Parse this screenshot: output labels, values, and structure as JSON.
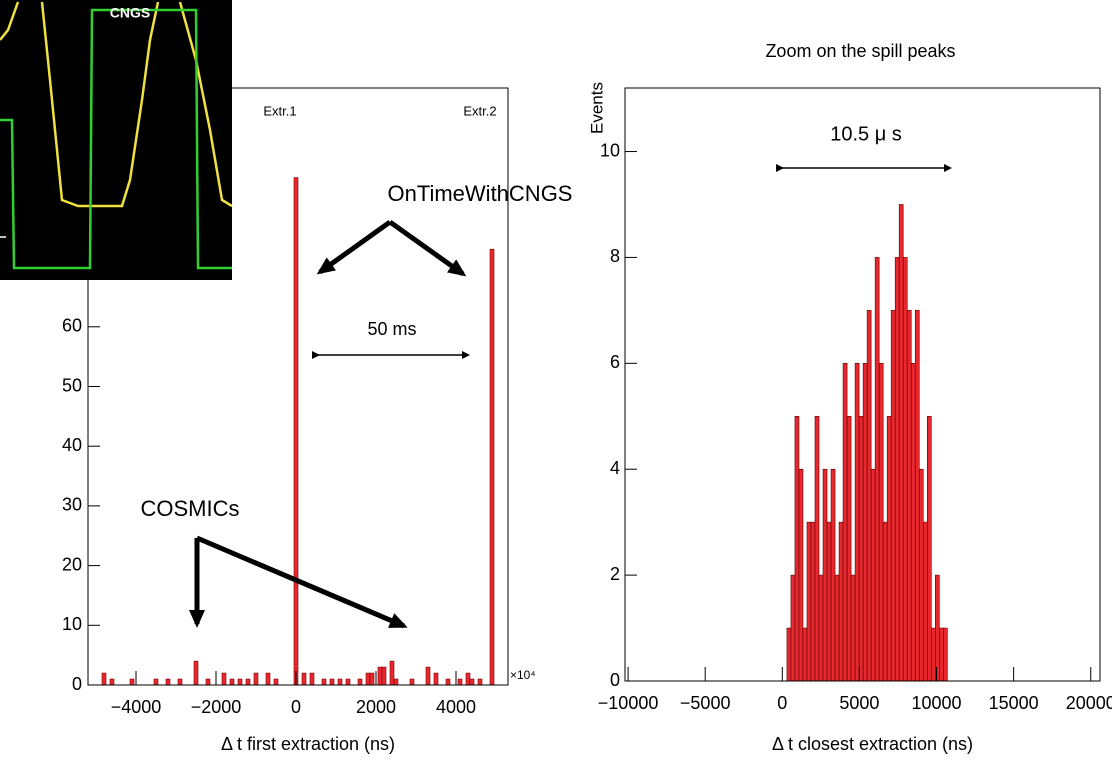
{
  "chart_data": [
    {
      "type": "bar",
      "x": [
        -4800,
        -4600,
        -4100,
        -3500,
        -3200,
        -2900,
        -2500,
        -2200,
        -1800,
        -1600,
        -1400,
        -1200,
        -1000,
        -700,
        -500,
        0,
        200,
        400,
        700,
        900,
        1100,
        1300,
        1600,
        1800,
        1900,
        2100,
        2200,
        2400,
        2500,
        2900,
        3300,
        3500,
        3800,
        4100,
        4300,
        4400,
        4600,
        4900
      ],
      "values": [
        2,
        1,
        1,
        1,
        1,
        1,
        4,
        1,
        2,
        1,
        1,
        1,
        2,
        2,
        1,
        85,
        2,
        2,
        1,
        1,
        1,
        1,
        1,
        2,
        2,
        3,
        3,
        4,
        1,
        1,
        3,
        2,
        1,
        1,
        2,
        1,
        1,
        73
      ],
      "color": "#e8282e",
      "xlim": [
        -5200,
        5300
      ],
      "xticks": [
        {
          "value": -4000,
          "label": "−4000"
        },
        {
          "value": -2000,
          "label": "−2000"
        },
        0,
        2000,
        4000
      ],
      "x_multiplier": "×10⁴",
      "ylim": [
        0,
        100
      ],
      "yticks": [
        0,
        10,
        20,
        30,
        40,
        50,
        60
      ],
      "xlabel": "Δ t first extraction (ns)",
      "annotations": [
        "Extr.1",
        "Extr.2",
        "OnTimeWithCNGS",
        "50 ms",
        "COSMICs"
      ]
    },
    {
      "type": "histogram",
      "title": "Zoom on the spill peaks",
      "bins": [
        300,
        560,
        820,
        1080,
        1340,
        1600,
        1860,
        2120,
        2380,
        2640,
        2900,
        3160,
        3420,
        3680,
        3940,
        4200,
        4460,
        4720,
        4980,
        5240,
        5500,
        5760,
        6020,
        6280,
        6540,
        6800,
        7060,
        7320,
        7580,
        7840,
        8100,
        8360,
        8620,
        8880,
        9140,
        9400,
        9660,
        9920,
        10180,
        10440,
        10700
      ],
      "values": [
        1,
        2,
        5,
        4,
        1,
        3,
        3,
        5,
        2,
        4,
        3,
        4,
        2,
        3,
        6,
        5,
        2,
        6,
        5,
        6,
        7,
        4,
        8,
        6,
        3,
        5,
        7,
        8,
        9,
        8,
        7,
        6,
        7,
        4,
        3,
        5,
        1,
        2,
        1,
        1
      ],
      "color": "#e8282e",
      "xlim": [
        -10200,
        20600
      ],
      "xticks": [
        {
          "value": -10000,
          "label": "−10000"
        },
        {
          "value": -5000,
          "label": "−5000"
        },
        0,
        5000,
        10000,
        15000,
        20000
      ],
      "ylim": [
        0,
        11.2
      ],
      "yticks": [
        0,
        2,
        4,
        6,
        8,
        10
      ],
      "xlabel": "Δ t closest extraction (ns)",
      "ylabel": "Events",
      "annotations": [
        "10.5  μ s"
      ]
    }
  ],
  "inset": {
    "label": "CNGS"
  }
}
